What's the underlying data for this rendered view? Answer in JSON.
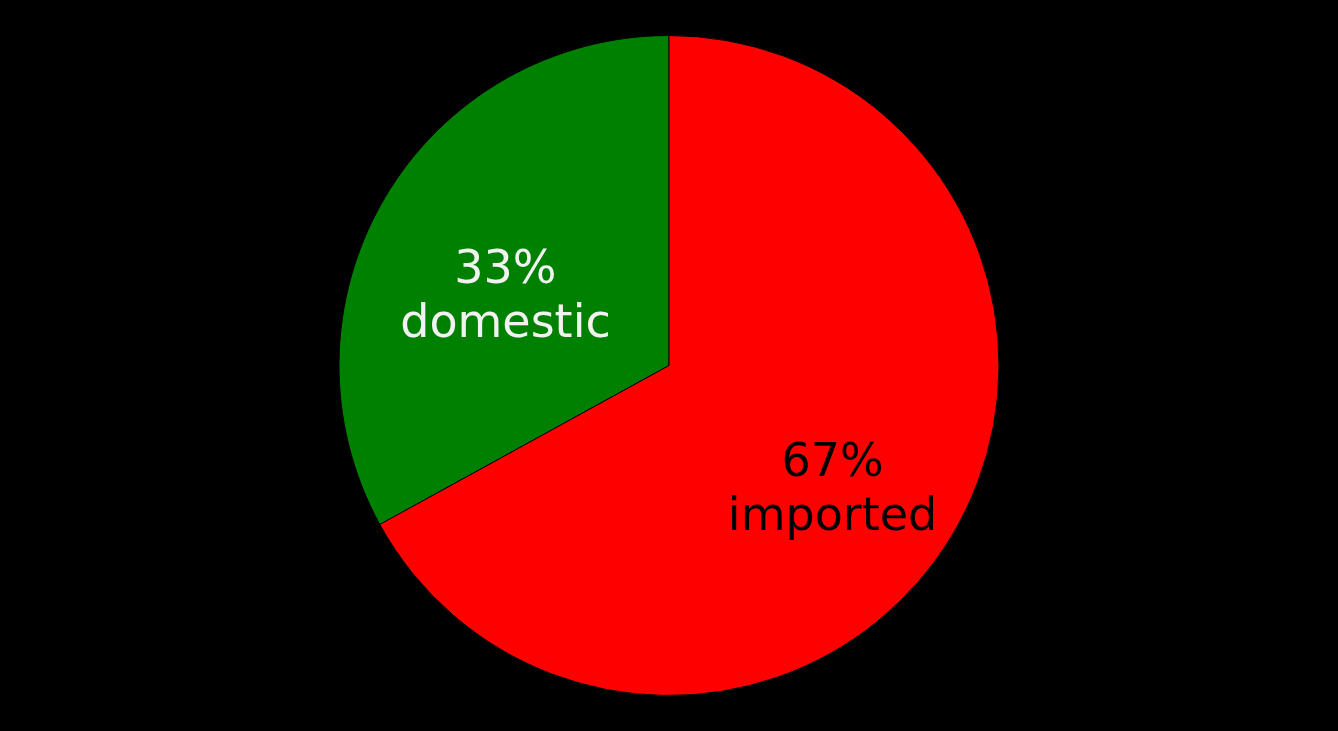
{
  "chart_data": {
    "type": "pie",
    "categories": [
      "domestic",
      "imported"
    ],
    "values": [
      33,
      67
    ],
    "value_labels": [
      "33%",
      "67%"
    ],
    "colors": [
      "#008000",
      "#ff0000"
    ]
  }
}
